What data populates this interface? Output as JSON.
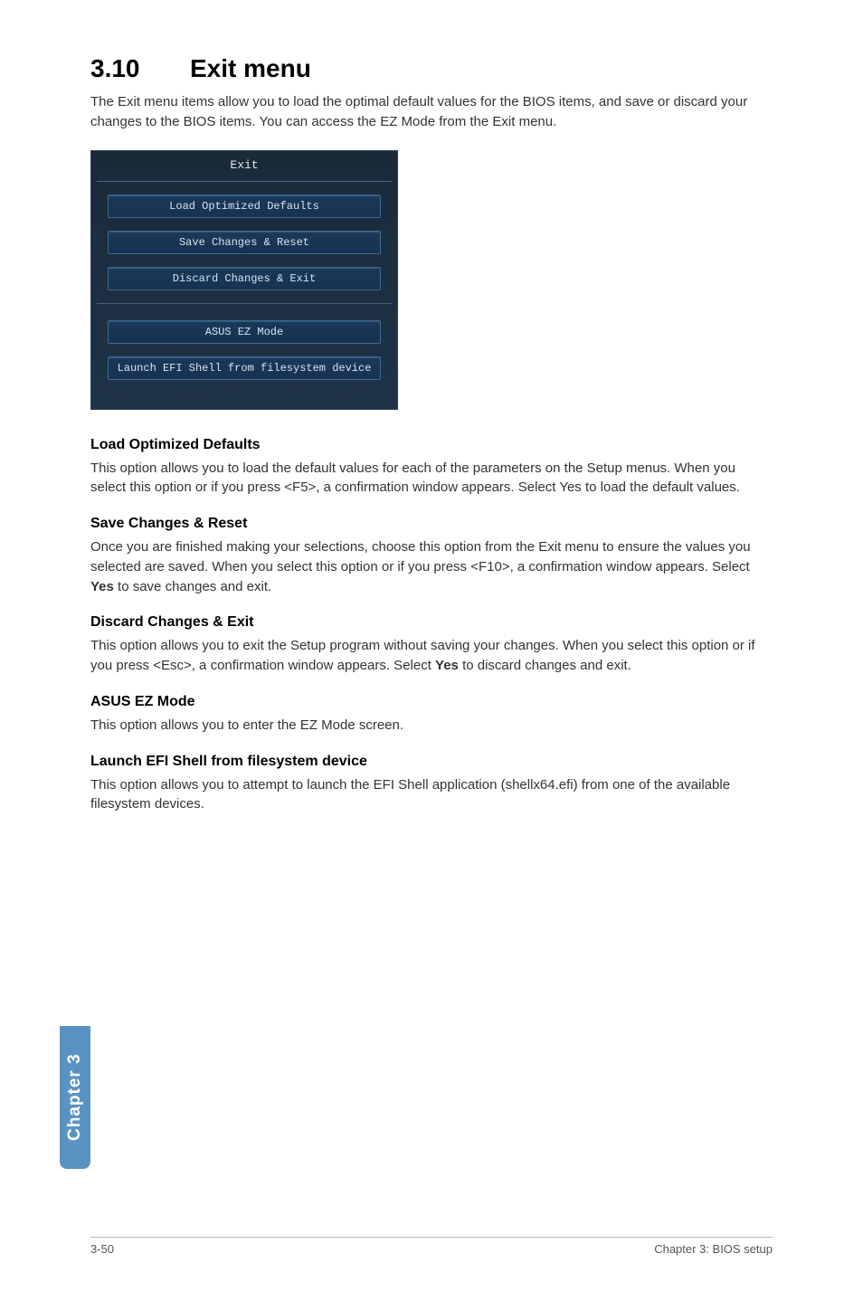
{
  "heading": {
    "number": "3.10",
    "title": "Exit menu"
  },
  "intro": "The Exit menu items allow you to load the optimal default values for the BIOS items, and save or discard your changes to the BIOS items. You can access the EZ Mode from the Exit menu.",
  "bios": {
    "title": "Exit",
    "buttons_top": [
      "Load Optimized Defaults",
      "Save Changes & Reset",
      "Discard Changes & Exit"
    ],
    "buttons_bottom": [
      "ASUS EZ Mode",
      "Launch EFI Shell from filesystem device"
    ]
  },
  "sections": [
    {
      "title": "Load Optimized Defaults",
      "body": "This option allows you to load the default values for each of the parameters on the Setup menus. When you select this option or if you press <F5>, a confirmation window appears. Select Yes to load the default values."
    },
    {
      "title": "Save Changes & Reset",
      "body_pre": "Once you are finished making your selections, choose this option from the Exit menu to ensure the values you selected are saved. When you select this option or if you press <F10>, a confirmation window appears. Select ",
      "body_bold": "Yes",
      "body_post": " to save changes and exit."
    },
    {
      "title": "Discard Changes & Exit",
      "body_pre": "This option allows you to exit the Setup program without saving your changes. When you select this option or if you press <Esc>, a confirmation window appears. Select ",
      "body_bold": "Yes",
      "body_post": " to discard changes and exit."
    },
    {
      "title": "ASUS EZ Mode",
      "body": "This option allows you to enter the EZ Mode screen."
    },
    {
      "title": "Launch EFI Shell from filesystem device",
      "body": "This option allows you to attempt to launch the EFI Shell application (shellx64.efi) from one of the available filesystem devices."
    }
  ],
  "side_tab": "Chapter 3",
  "footer": {
    "left": "3-50",
    "right": "Chapter 3: BIOS setup"
  }
}
